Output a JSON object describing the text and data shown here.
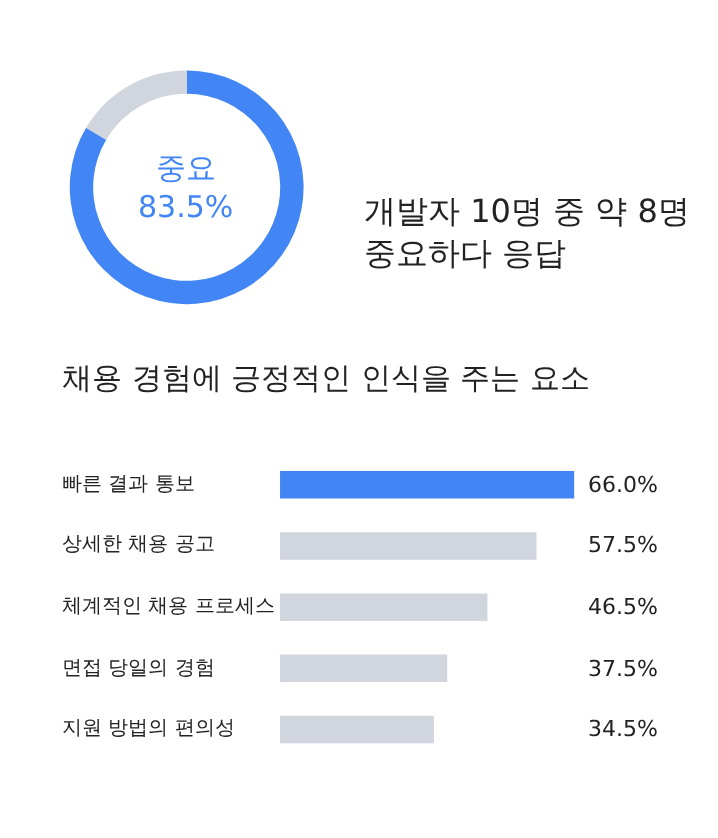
{
  "chart_data": [
    {
      "type": "donut",
      "categories": [
        "중요",
        null
      ],
      "values": [
        83.5,
        16.5
      ],
      "colors": [
        "#4285f4",
        "#d1d5de"
      ],
      "value_labels": [
        "83.5%",
        null
      ],
      "annotations": [
        "개발자 10명 중 약 8명\n중요하다 응답"
      ]
    },
    {
      "type": "bar",
      "orientation": "horizontal",
      "title": "채용 경험에 긍정적인 인식을 주는 요소",
      "categories": [
        "빠른 결과 통보",
        "상세한 채용 공고",
        "체계적인 채용 프로세스",
        "면접 당일의 경험",
        "지원 방법의 편의성"
      ],
      "values": [
        66.0,
        57.5,
        46.5,
        37.5,
        34.5
      ],
      "colors": [
        "#4285f4",
        "#d1d5de",
        "#d1d5de",
        "#d1d5de",
        "#d1d5de"
      ],
      "value_labels": [
        "66.0%",
        "57.5%",
        "46.5%",
        "37.5%",
        "34.5%"
      ]
    }
  ]
}
